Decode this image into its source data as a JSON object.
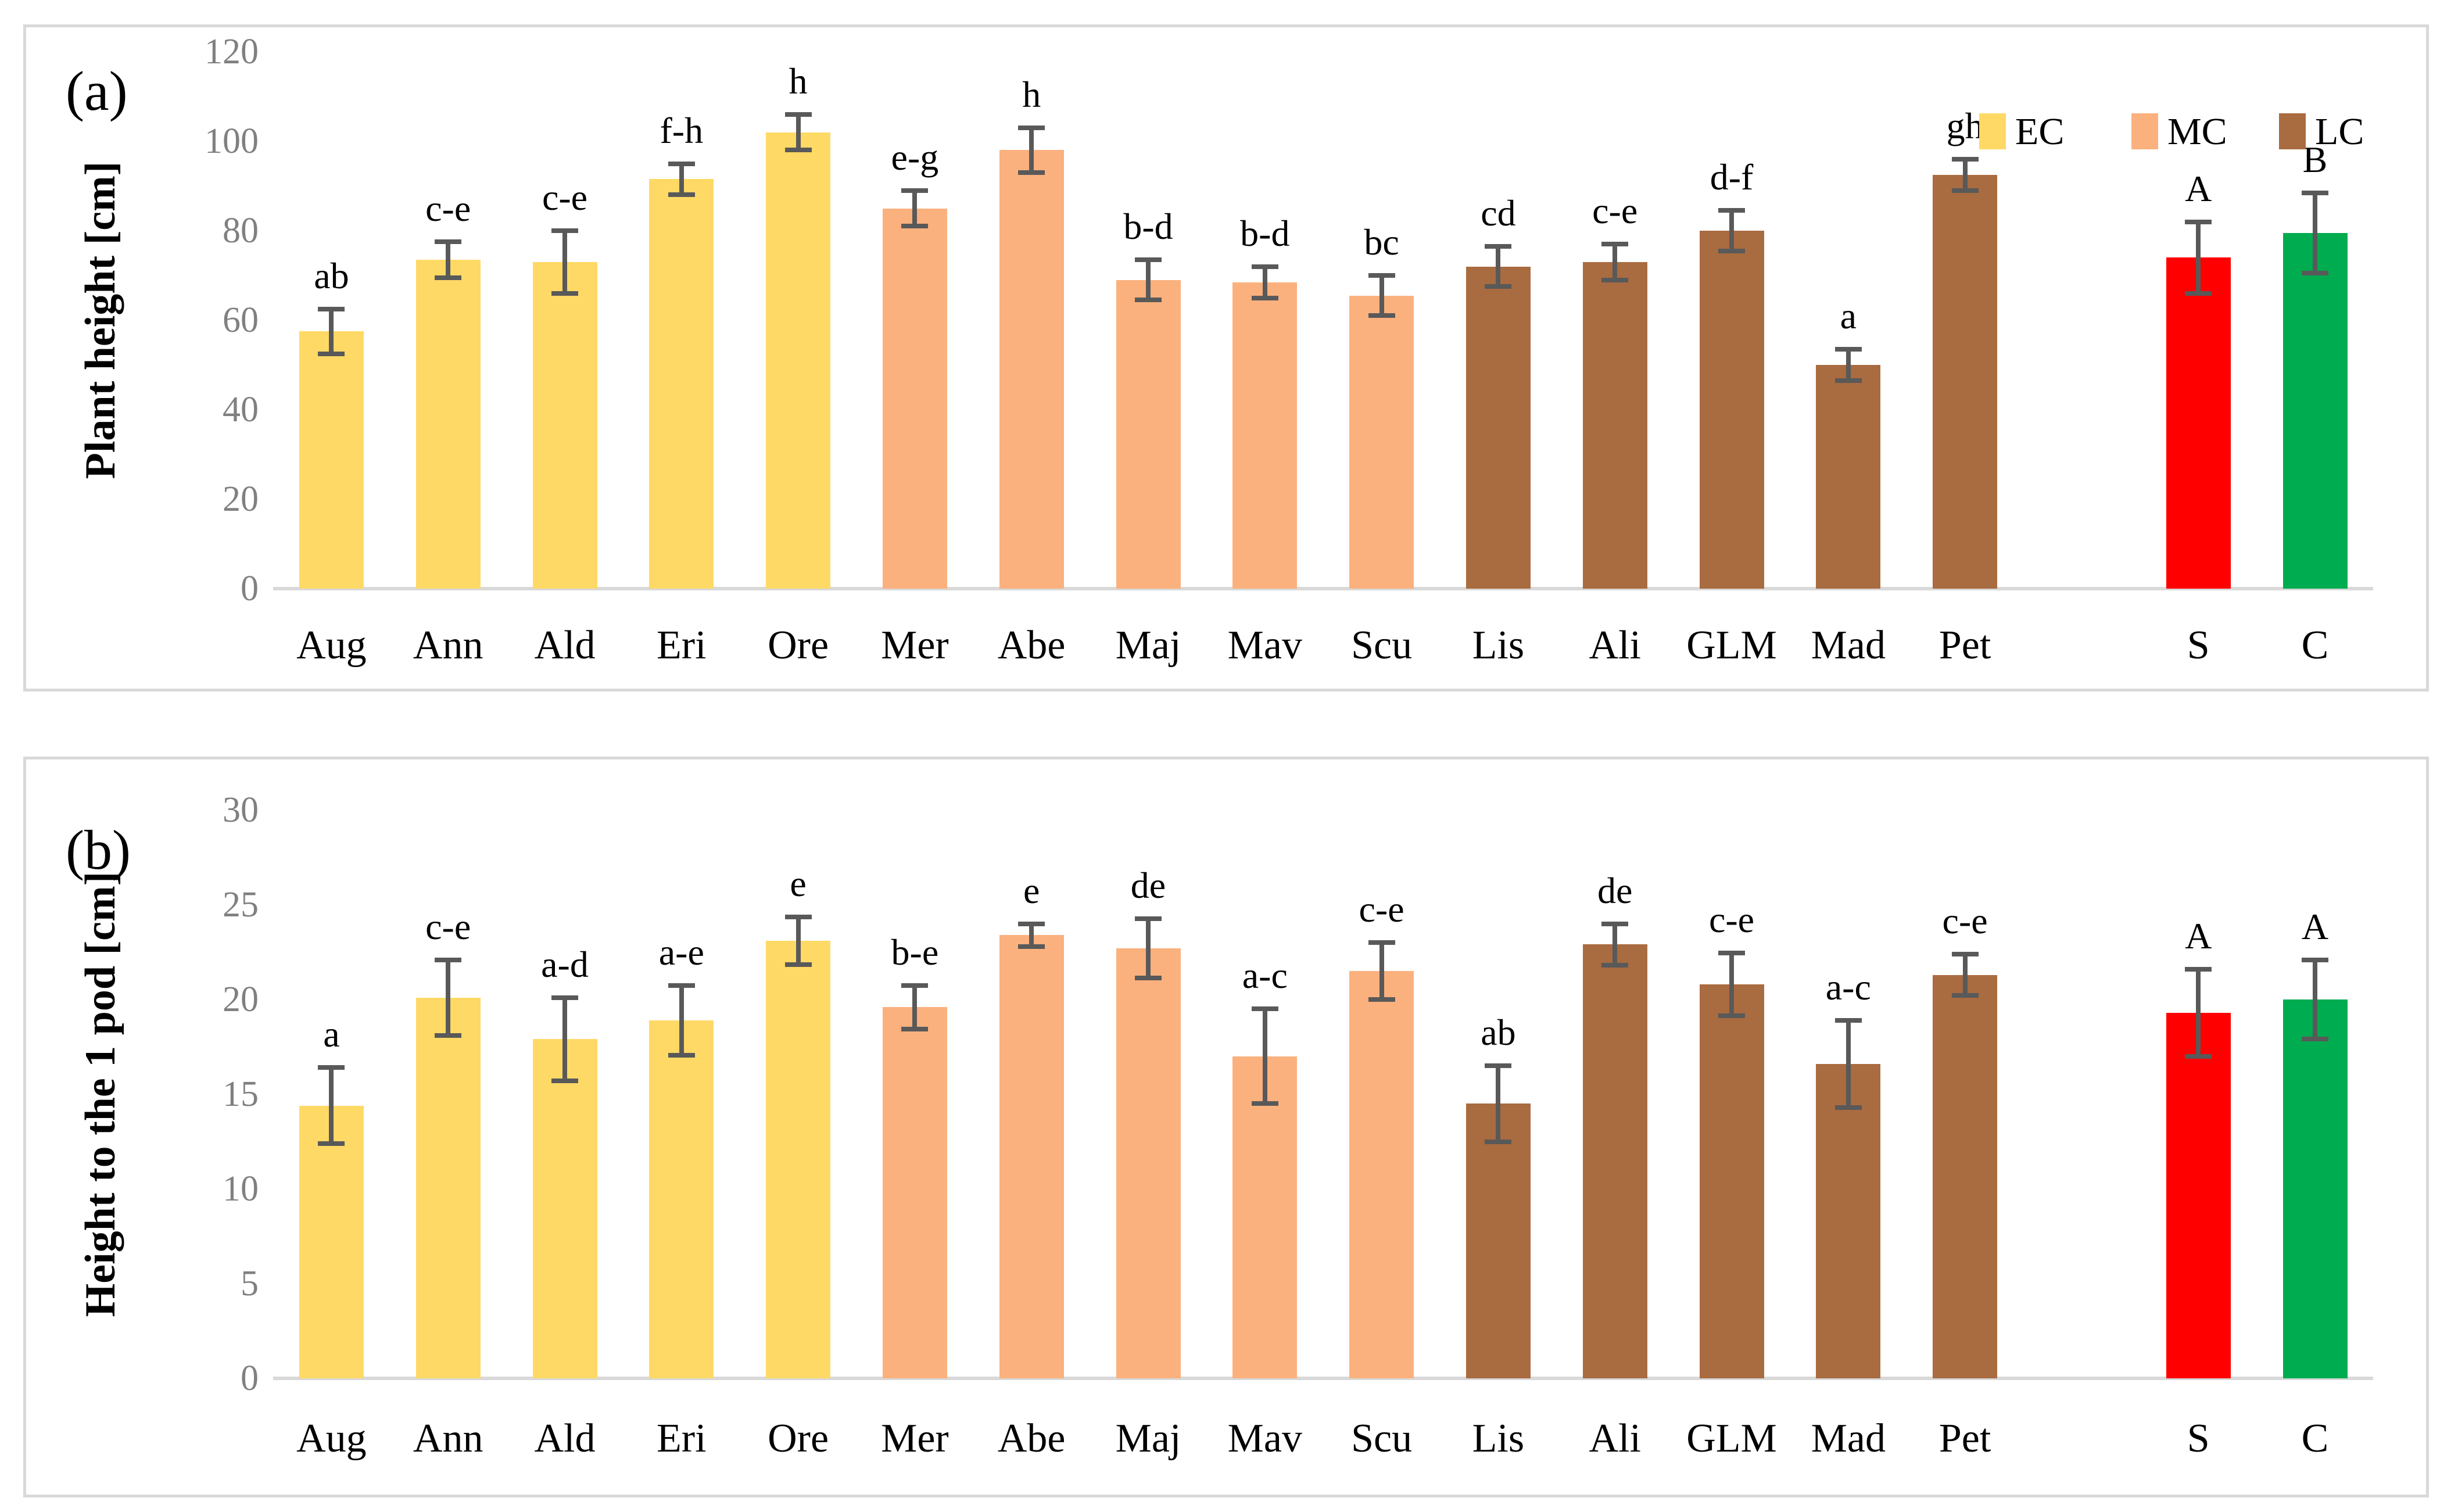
{
  "figure": {
    "background": "#FFFFFF",
    "panel_border_color": "#D9D9D9",
    "axis_line_color": "#D9D9D9",
    "error_bar_color": "#595959",
    "tick_label_color": "#808080",
    "group_colors": {
      "EC": "#FFD965",
      "MC": "#FBB17E",
      "LC": "#A96B40",
      "S": "#FF0000",
      "C": "#00AC50"
    }
  },
  "legend": {
    "position": "top-right-of-panel-a",
    "items": [
      {
        "label": "EC",
        "color_key": "EC"
      },
      {
        "label": "MC",
        "color_key": "MC"
      },
      {
        "label": "LC",
        "color_key": "LC"
      }
    ]
  },
  "chart_data": [
    {
      "type": "bar",
      "panel_label": "(a)",
      "ylabel": "Plant height [cm]",
      "ylim": [
        0,
        120
      ],
      "yticks": [
        0,
        20,
        40,
        60,
        80,
        100,
        120
      ],
      "grid": false,
      "bars": [
        {
          "label": "Aug",
          "slot": 0,
          "value": 57.5,
          "error": 5,
          "letter": "ab",
          "group": "EC"
        },
        {
          "label": "Ann",
          "slot": 1,
          "value": 73.5,
          "error": 4,
          "letter": "c-e",
          "group": "EC"
        },
        {
          "label": "Ald",
          "slot": 2,
          "value": 73,
          "error": 7,
          "letter": "c-e",
          "group": "EC"
        },
        {
          "label": "Eri",
          "slot": 3,
          "value": 91.5,
          "error": 3.5,
          "letter": "f-h",
          "group": "EC"
        },
        {
          "label": "Ore",
          "slot": 4,
          "value": 102,
          "error": 4,
          "letter": "h",
          "group": "EC"
        },
        {
          "label": "Mer",
          "slot": 5,
          "value": 85,
          "error": 4,
          "letter": "e-g",
          "group": "MC"
        },
        {
          "label": "Abe",
          "slot": 6,
          "value": 98,
          "error": 5,
          "letter": "h",
          "group": "MC"
        },
        {
          "label": "Maj",
          "slot": 7,
          "value": 69,
          "error": 4.5,
          "letter": "b-d",
          "group": "MC"
        },
        {
          "label": "Mav",
          "slot": 8,
          "value": 68.5,
          "error": 3.5,
          "letter": "b-d",
          "group": "MC"
        },
        {
          "label": "Scu",
          "slot": 9,
          "value": 65.5,
          "error": 4.5,
          "letter": "bc",
          "group": "MC"
        },
        {
          "label": "Lis",
          "slot": 10,
          "value": 72,
          "error": 4.5,
          "letter": "cd",
          "group": "LC"
        },
        {
          "label": "Ali",
          "slot": 11,
          "value": 73,
          "error": 4,
          "letter": "c-e",
          "group": "LC"
        },
        {
          "label": "GLM",
          "slot": 12,
          "value": 80,
          "error": 4.5,
          "letter": "d-f",
          "group": "LC"
        },
        {
          "label": "Mad",
          "slot": 13,
          "value": 50,
          "error": 3.5,
          "letter": "a",
          "group": "LC"
        },
        {
          "label": "Pet",
          "slot": 14,
          "value": 92.5,
          "error": 3.5,
          "letter": "gh",
          "group": "LC"
        },
        {
          "label": "S",
          "slot": 16,
          "value": 74,
          "error": 8,
          "letter": "A",
          "group": "S"
        },
        {
          "label": "C",
          "slot": 17,
          "value": 79.5,
          "error": 9,
          "letter": "B",
          "group": "C"
        }
      ]
    },
    {
      "type": "bar",
      "panel_label": "(b)",
      "ylabel": "Height to the 1 pod [cm]",
      "ylim": [
        0,
        30
      ],
      "yticks": [
        0,
        5,
        10,
        15,
        20,
        25,
        30
      ],
      "grid": false,
      "bars": [
        {
          "label": "Aug",
          "slot": 0,
          "value": 14.4,
          "error": 2,
          "letter": "a",
          "group": "EC"
        },
        {
          "label": "Ann",
          "slot": 1,
          "value": 20.1,
          "error": 2,
          "letter": "c-e",
          "group": "EC"
        },
        {
          "label": "Ald",
          "slot": 2,
          "value": 17.9,
          "error": 2.2,
          "letter": "a-d",
          "group": "EC"
        },
        {
          "label": "Eri",
          "slot": 3,
          "value": 18.9,
          "error": 1.85,
          "letter": "a-e",
          "group": "EC"
        },
        {
          "label": "Ore",
          "slot": 4,
          "value": 23.1,
          "error": 1.25,
          "letter": "e",
          "group": "EC"
        },
        {
          "label": "Mer",
          "slot": 5,
          "value": 19.6,
          "error": 1.15,
          "letter": "b-e",
          "group": "MC"
        },
        {
          "label": "Abe",
          "slot": 6,
          "value": 23.4,
          "error": 0.6,
          "letter": "e",
          "group": "MC"
        },
        {
          "label": "Maj",
          "slot": 7,
          "value": 22.7,
          "error": 1.55,
          "letter": "de",
          "group": "MC"
        },
        {
          "label": "Mav",
          "slot": 8,
          "value": 17,
          "error": 2.5,
          "letter": "a-c",
          "group": "MC"
        },
        {
          "label": "Scu",
          "slot": 9,
          "value": 21.5,
          "error": 1.5,
          "letter": "c-e",
          "group": "MC"
        },
        {
          "label": "Lis",
          "slot": 10,
          "value": 14.5,
          "error": 2,
          "letter": "ab",
          "group": "LC"
        },
        {
          "label": "Ali",
          "slot": 11,
          "value": 22.9,
          "error": 1.1,
          "letter": "de",
          "group": "LC"
        },
        {
          "label": "GLM",
          "slot": 12,
          "value": 20.8,
          "error": 1.65,
          "letter": "c-e",
          "group": "LC"
        },
        {
          "label": "Mad",
          "slot": 13,
          "value": 16.6,
          "error": 2.3,
          "letter": "a-c",
          "group": "LC"
        },
        {
          "label": "Pet",
          "slot": 14,
          "value": 21.3,
          "error": 1.1,
          "letter": "c-e",
          "group": "LC"
        },
        {
          "label": "S",
          "slot": 16,
          "value": 19.3,
          "error": 2.3,
          "letter": "A",
          "group": "S"
        },
        {
          "label": "C",
          "slot": 17,
          "value": 20,
          "error": 2.1,
          "letter": "A",
          "group": "C"
        }
      ]
    }
  ]
}
